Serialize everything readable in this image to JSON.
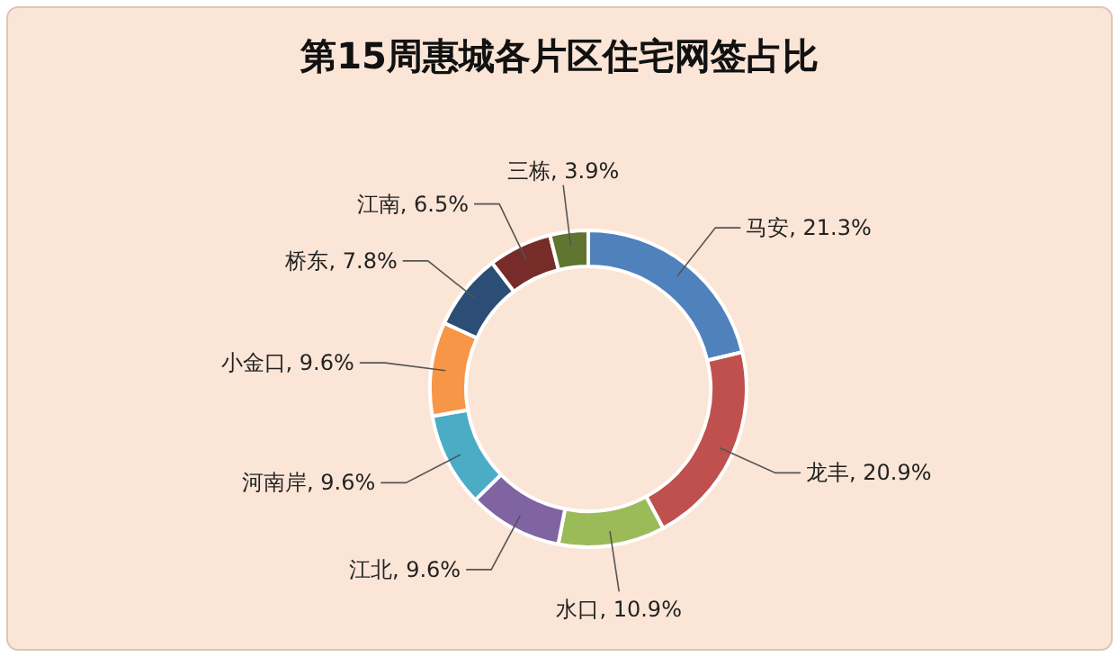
{
  "chart_data": {
    "type": "donut",
    "title": "第15周惠城各片区住宅网签占比",
    "categories": [
      "马安",
      "龙丰",
      "水口",
      "江北",
      "河南岸",
      "小金口",
      "桥东",
      "江南",
      "三栋"
    ],
    "values": [
      21.3,
      20.9,
      10.9,
      9.6,
      9.6,
      9.6,
      7.8,
      6.5,
      3.9
    ],
    "value_labels": [
      "21.3%",
      "20.9%",
      "10.9%",
      "9.6%",
      "9.6%",
      "9.6%",
      "7.8%",
      "6.5%",
      "3.9%"
    ],
    "colors": [
      "#4f81bd",
      "#c0504d",
      "#9bbb59",
      "#8064a2",
      "#4bacc6",
      "#f79646",
      "#2c4d75",
      "#772c2a",
      "#5f7530"
    ]
  }
}
